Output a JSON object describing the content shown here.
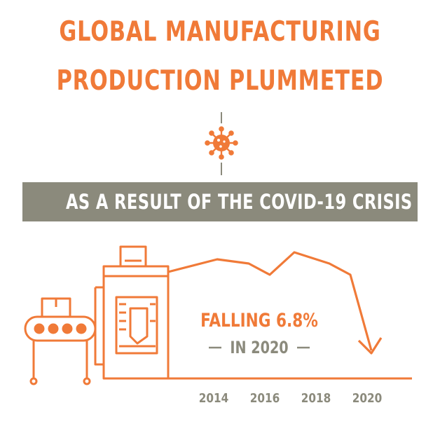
{
  "title_line1": "GLOBAL MANUFACTURING",
  "title_line2": "PRODUCTION PLUMMETED",
  "subtitle": "AS A RESULT OF THE COVID-19 CRISIS",
  "icons": {
    "virus": "virus-icon",
    "factory": "factory-conveyor-icon"
  },
  "colors": {
    "accent": "#f07a38",
    "gray": "#8b8a7c",
    "background": "#ffffff"
  },
  "chart_data": {
    "type": "line",
    "x": [
      "2014",
      "2016",
      "2018",
      "2020"
    ],
    "x_ticks": [
      "2014",
      "2016",
      "2018",
      "2020"
    ],
    "annotation": {
      "line1": "FALLING 6.8%",
      "line2": "IN 2020"
    },
    "grid": false,
    "trend": "rising through 2018, then falling 6.8% in 2020"
  }
}
